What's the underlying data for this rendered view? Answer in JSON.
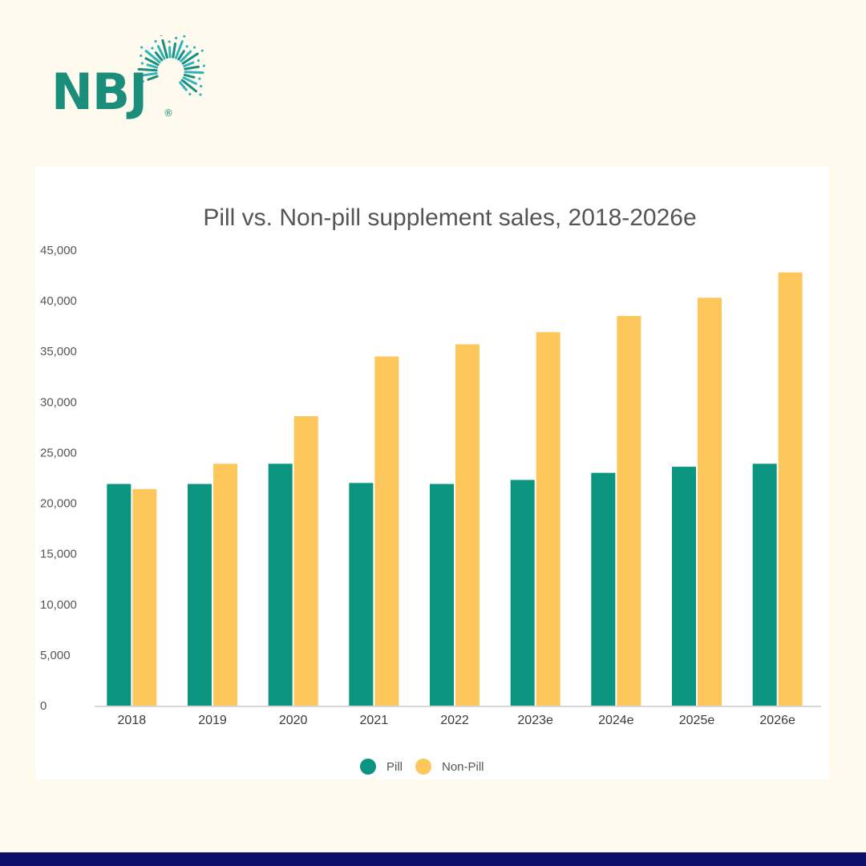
{
  "brand": {
    "name": "NBJ",
    "registered": "®",
    "color": "#1a8e7a"
  },
  "chart_data": {
    "type": "bar",
    "title": "Pill vs. Non-pill supplement sales, 2018-2026e",
    "xlabel": "",
    "ylabel": "",
    "ylim": [
      0,
      45000
    ],
    "yticks": [
      0,
      5000,
      10000,
      15000,
      20000,
      25000,
      30000,
      35000,
      40000,
      45000
    ],
    "ytick_labels": [
      "0",
      "5,000",
      "10,000",
      "15,000",
      "20,000",
      "25,000",
      "30,000",
      "35,000",
      "40,000",
      "45,000"
    ],
    "grid": false,
    "legend_position": "bottom-center",
    "categories": [
      "2018",
      "2019",
      "2020",
      "2021",
      "2022",
      "2023e",
      "2024e",
      "2025e",
      "2026e"
    ],
    "series": [
      {
        "name": "Pill",
        "color": "#0b9580",
        "values": [
          21900,
          21900,
          23900,
          22000,
          21900,
          22300,
          23000,
          23600,
          23900
        ]
      },
      {
        "name": "Non-Pill",
        "color": "#fdc75c",
        "values": [
          21400,
          23900,
          28600,
          34500,
          35700,
          36900,
          38500,
          40300,
          42800
        ]
      }
    ]
  },
  "colors": {
    "page_background": "#fefbee",
    "card_background": "#ffffff",
    "bottom_bar": "#0d0f6b",
    "text": "#555555",
    "axis": "#d6d6d6"
  }
}
